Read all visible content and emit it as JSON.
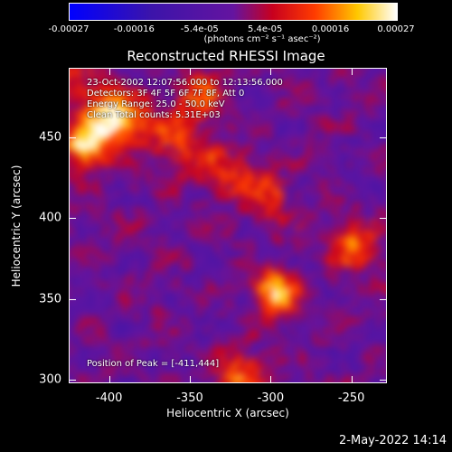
{
  "colorbar": {
    "ticks": [
      "-0.00027",
      "-0.00016",
      "-5.4e-05",
      "5.4e-05",
      "0.00016",
      "0.00027"
    ],
    "unit": "(photons cm⁻² s⁻¹ asec⁻²)"
  },
  "chart_data": {
    "type": "heatmap",
    "title": "Reconstructed RHESSI Image",
    "xlabel": "Heliocentric X (arcsec)",
    "ylabel": "Heliocentric Y (arcsec)",
    "xlim": [
      -425,
      -228
    ],
    "ylim": [
      298,
      493
    ],
    "xticks": [
      -400,
      -350,
      -300,
      -250
    ],
    "yticks": [
      300,
      350,
      400,
      450
    ],
    "colorbar_range": [
      -0.00027,
      0.00027
    ],
    "annotations": [
      "23-Oct-2002 12:07:56.000 to 12:13:56.000",
      "Detectors: 3F 4F 5F 6F 7F 8F, Att 0",
      "Energy Range: 25.0 - 50.0 keV",
      "Clean      Total counts: 5.31E+03"
    ],
    "peak_label": "Position of Peak = [-411,444]",
    "peak": [
      -411,
      444
    ],
    "sources": [
      {
        "x": -411,
        "y": 444,
        "value": 0.00027
      },
      {
        "x": -395,
        "y": 458,
        "value": 0.0002
      },
      {
        "x": -345,
        "y": 472,
        "value": 0.00016
      },
      {
        "x": -300,
        "y": 358,
        "value": 0.00024
      },
      {
        "x": -255,
        "y": 385,
        "value": 0.00015
      },
      {
        "x": -320,
        "y": 310,
        "value": 0.00018
      }
    ]
  },
  "footer": {
    "timestamp": "2-May-2022 14:14"
  }
}
